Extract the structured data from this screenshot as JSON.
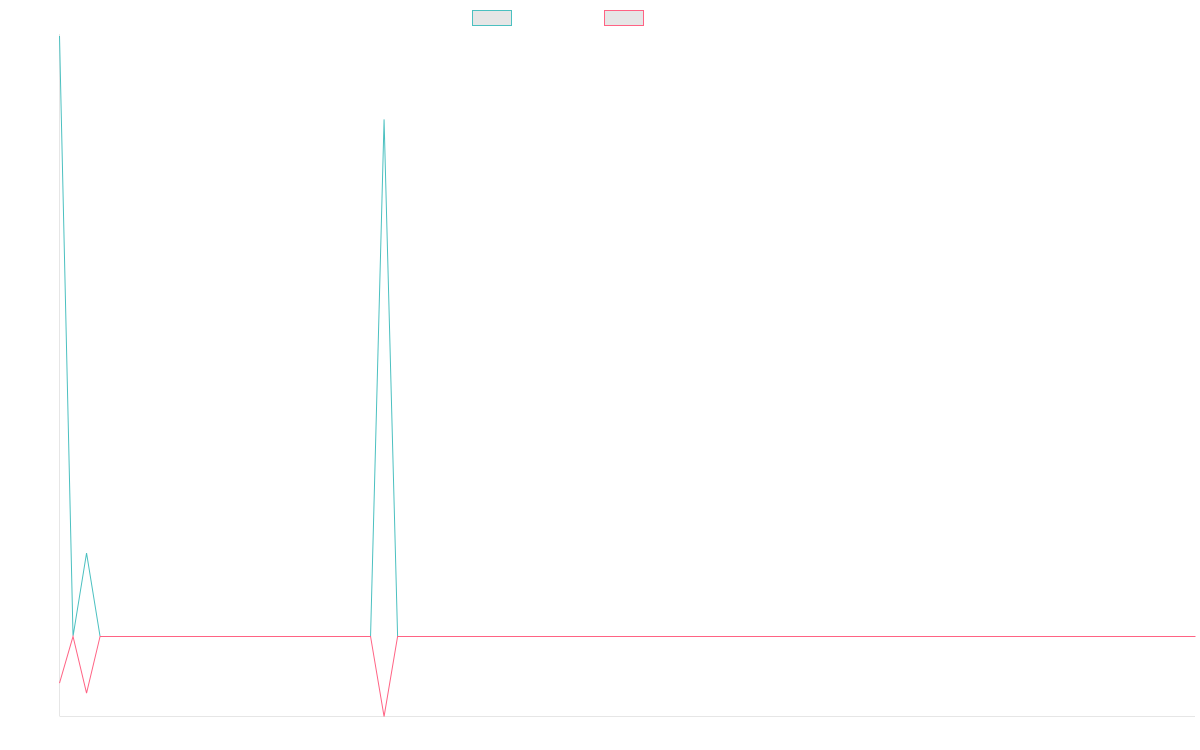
{
  "chart_data": {
    "type": "line",
    "grid": false,
    "legend_position": "top-center",
    "x": [
      0,
      1,
      2,
      3,
      4,
      5,
      6,
      7,
      8,
      9,
      10,
      11,
      12,
      13,
      14,
      15,
      16,
      17,
      18,
      19,
      20,
      21,
      22,
      23,
      24,
      25,
      26,
      27,
      28,
      29,
      30,
      31,
      32,
      33,
      34,
      35,
      36,
      37,
      38,
      39,
      40,
      41,
      42,
      43,
      44,
      45,
      46,
      47,
      48,
      49,
      50,
      51,
      52,
      53,
      54,
      55,
      56,
      57,
      58,
      59,
      60,
      61,
      62,
      63,
      64,
      65,
      66,
      67,
      68,
      69,
      70,
      71,
      72,
      73,
      74,
      75,
      76,
      77,
      78,
      79,
      80,
      81,
      82,
      83,
      84
    ],
    "ylim": [
      -12,
      90
    ],
    "series": [
      {
        "color": "#4bc0c0",
        "values": [
          90,
          0,
          12.5,
          0,
          0,
          0,
          0,
          0,
          0,
          0,
          0,
          0,
          0,
          0,
          0,
          0,
          0,
          0,
          0,
          0,
          0,
          0,
          0,
          0,
          77.5,
          0,
          0,
          0,
          0,
          0,
          0,
          0,
          0,
          0,
          0,
          0,
          0,
          0,
          0,
          0,
          0,
          0,
          0,
          0,
          0,
          0,
          0,
          0,
          0,
          0,
          0,
          0,
          0,
          0,
          0,
          0,
          0,
          0,
          0,
          0,
          0,
          0,
          0,
          0,
          0,
          0,
          0,
          0,
          0,
          0,
          0,
          0,
          0,
          0,
          0,
          0,
          0,
          0,
          0,
          0,
          0,
          0,
          0,
          0,
          0
        ]
      },
      {
        "color": "#ff6384",
        "values": [
          -7,
          0,
          -8.5,
          0,
          0,
          0,
          0,
          0,
          0,
          0,
          0,
          0,
          0,
          0,
          0,
          0,
          0,
          0,
          0,
          0,
          0,
          0,
          0,
          0,
          -12,
          0,
          0,
          0,
          0,
          0,
          0,
          0,
          0,
          0,
          0,
          0,
          0,
          0,
          0,
          0,
          0,
          0,
          0,
          0,
          0,
          0,
          0,
          0,
          0,
          0,
          0,
          0,
          0,
          0,
          0,
          0,
          0,
          0,
          0,
          0,
          0,
          0,
          0,
          0,
          0,
          0,
          0,
          0,
          0,
          0,
          0,
          0,
          0,
          0,
          0,
          0,
          0,
          0,
          0,
          0,
          0,
          0,
          0,
          0,
          0
        ]
      }
    ]
  }
}
